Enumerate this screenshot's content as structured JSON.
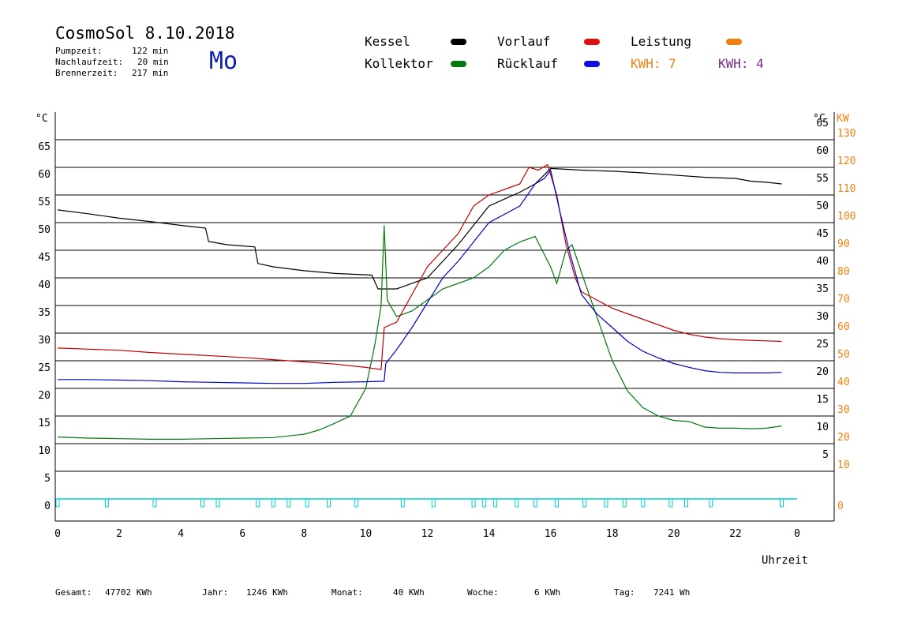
{
  "header": {
    "title": "CosmoSol 8.10.2018",
    "day": "Mo",
    "stats": [
      {
        "label": "Pumpzeit:",
        "value": "122 min"
      },
      {
        "label": "Nachlaufzeit:",
        "value": "20 min"
      },
      {
        "label": "Brennerzeit:",
        "value": "217 min"
      }
    ]
  },
  "legend": {
    "kessel": "Kessel",
    "kollektor": "Kollektor",
    "vorlauf": "Vorlauf",
    "ruecklauf": "Rücklauf",
    "leistung": "Leistung",
    "kwh1": "KWH: 7",
    "kwh2": "KWH: 4"
  },
  "colors": {
    "kessel": "#000000",
    "kollektor": "#007a0e",
    "vorlauf": "#c00000",
    "ruecklauf": "#0000c8",
    "leistung": "#f07a00",
    "kwh2": "#7a2a8a",
    "pump": "#00d0d0"
  },
  "footer": [
    {
      "label": "Gesamt:",
      "value": "47702 KWh"
    },
    {
      "label": "Jahr:",
      "value": "1246 KWh"
    },
    {
      "label": "Monat:",
      "value": "40 KWh"
    },
    {
      "label": "Woche:",
      "value": "6 KWh"
    },
    {
      "label": "Tag:",
      "value": "7241 Wh"
    }
  ],
  "chart_data": {
    "type": "line",
    "xlabel": "Uhrzeit",
    "left_unit": "°C",
    "right_unit_temp": "°C",
    "right_unit_power": "KW",
    "xlim": [
      0,
      24
    ],
    "ylim": [
      0,
      65
    ],
    "x_ticks": [
      "0",
      "2",
      "4",
      "6",
      "8",
      "10",
      "12",
      "14",
      "16",
      "18",
      "20",
      "22",
      "0"
    ],
    "y_ticks": [
      0,
      5,
      10,
      15,
      20,
      25,
      30,
      35,
      40,
      45,
      50,
      55,
      60,
      65
    ],
    "right_temp_ticks": [
      5,
      10,
      15,
      20,
      25,
      30,
      35,
      40,
      45,
      50,
      55,
      60,
      65
    ],
    "right_power_ticks": [
      0,
      10,
      20,
      30,
      40,
      50,
      60,
      70,
      80,
      90,
      100,
      110,
      120,
      130
    ],
    "series": [
      {
        "name": "Kessel",
        "points": [
          [
            0,
            52.3
          ],
          [
            1,
            51.6
          ],
          [
            2,
            50.8
          ],
          [
            3,
            50.2
          ],
          [
            4,
            49.5
          ],
          [
            4.8,
            49.0
          ],
          [
            4.9,
            46.6
          ],
          [
            5.5,
            46.0
          ],
          [
            6.4,
            45.6
          ],
          [
            6.5,
            42.6
          ],
          [
            7,
            42.0
          ],
          [
            8,
            41.3
          ],
          [
            9,
            40.8
          ],
          [
            10.2,
            40.5
          ],
          [
            10.4,
            38.0
          ],
          [
            11,
            38.0
          ],
          [
            12,
            40.0
          ],
          [
            13,
            46.0
          ],
          [
            14,
            53.0
          ],
          [
            15,
            55.5
          ],
          [
            15.5,
            57.0
          ],
          [
            16,
            59.8
          ],
          [
            17,
            59.5
          ],
          [
            18,
            59.3
          ],
          [
            19,
            59.0
          ],
          [
            20,
            58.6
          ],
          [
            21,
            58.2
          ],
          [
            22,
            58.0
          ],
          [
            22.5,
            57.5
          ],
          [
            23,
            57.3
          ],
          [
            23.5,
            57.0
          ]
        ]
      },
      {
        "name": "Kollektor",
        "points": [
          [
            0,
            11.2
          ],
          [
            1,
            11.0
          ],
          [
            2,
            10.9
          ],
          [
            3,
            10.8
          ],
          [
            4,
            10.8
          ],
          [
            5,
            10.9
          ],
          [
            6,
            11.0
          ],
          [
            7,
            11.1
          ],
          [
            8,
            11.7
          ],
          [
            8.5,
            12.5
          ],
          [
            9,
            13.7
          ],
          [
            9.5,
            15.0
          ],
          [
            10,
            20.0
          ],
          [
            10.3,
            28.0
          ],
          [
            10.5,
            35.0
          ],
          [
            10.6,
            49.5
          ],
          [
            10.7,
            36.0
          ],
          [
            11,
            33.0
          ],
          [
            11.5,
            34.0
          ],
          [
            12,
            36.0
          ],
          [
            12.5,
            38.0
          ],
          [
            13,
            39.0
          ],
          [
            13.5,
            40.0
          ],
          [
            14,
            42.0
          ],
          [
            14.5,
            45.0
          ],
          [
            15,
            46.5
          ],
          [
            15.5,
            47.5
          ],
          [
            16,
            42.0
          ],
          [
            16.2,
            39.0
          ],
          [
            16.5,
            45.0
          ],
          [
            16.7,
            46.0
          ],
          [
            17,
            41.0
          ],
          [
            17.5,
            33.0
          ],
          [
            18,
            25.0
          ],
          [
            18.5,
            19.5
          ],
          [
            19,
            16.5
          ],
          [
            19.5,
            15.0
          ],
          [
            20,
            14.2
          ],
          [
            20.5,
            14.0
          ],
          [
            21,
            13.0
          ],
          [
            21.5,
            12.8
          ],
          [
            22,
            12.8
          ],
          [
            22.5,
            12.7
          ],
          [
            23,
            12.8
          ],
          [
            23.5,
            13.2
          ]
        ]
      },
      {
        "name": "Vorlauf",
        "points": [
          [
            0,
            27.3
          ],
          [
            1,
            27.1
          ],
          [
            2,
            26.9
          ],
          [
            3,
            26.5
          ],
          [
            4,
            26.2
          ],
          [
            5,
            25.9
          ],
          [
            6,
            25.6
          ],
          [
            7,
            25.2
          ],
          [
            8,
            24.8
          ],
          [
            9,
            24.4
          ],
          [
            10,
            23.8
          ],
          [
            10.5,
            23.4
          ],
          [
            10.6,
            31.0
          ],
          [
            11,
            32.0
          ],
          [
            11.5,
            37.0
          ],
          [
            12,
            42.0
          ],
          [
            12.5,
            45.0
          ],
          [
            13,
            48.0
          ],
          [
            13.5,
            53.0
          ],
          [
            14,
            55.0
          ],
          [
            14.5,
            56.0
          ],
          [
            15,
            57.0
          ],
          [
            15.3,
            60.0
          ],
          [
            15.6,
            59.5
          ],
          [
            15.9,
            60.5
          ],
          [
            16.2,
            55.0
          ],
          [
            16.5,
            46.0
          ],
          [
            16.8,
            40.0
          ],
          [
            17,
            37.5
          ],
          [
            17.5,
            36.0
          ],
          [
            18,
            34.5
          ],
          [
            18.5,
            33.5
          ],
          [
            19,
            32.5
          ],
          [
            19.5,
            31.5
          ],
          [
            20,
            30.5
          ],
          [
            20.5,
            29.8
          ],
          [
            21,
            29.3
          ],
          [
            21.5,
            29.0
          ],
          [
            22,
            28.8
          ],
          [
            22.5,
            28.7
          ],
          [
            23,
            28.6
          ],
          [
            23.5,
            28.5
          ]
        ]
      },
      {
        "name": "Rücklauf",
        "points": [
          [
            0,
            21.6
          ],
          [
            1,
            21.6
          ],
          [
            2,
            21.5
          ],
          [
            3,
            21.4
          ],
          [
            4,
            21.2
          ],
          [
            5,
            21.1
          ],
          [
            6,
            21.0
          ],
          [
            7,
            20.9
          ],
          [
            8,
            20.9
          ],
          [
            9,
            21.1
          ],
          [
            10,
            21.2
          ],
          [
            10.6,
            21.3
          ],
          [
            10.65,
            24.5
          ],
          [
            11,
            27.0
          ],
          [
            11.5,
            31.0
          ],
          [
            12,
            35.5
          ],
          [
            12.5,
            40.0
          ],
          [
            13,
            43.0
          ],
          [
            13.5,
            46.5
          ],
          [
            14,
            50.0
          ],
          [
            14.5,
            51.5
          ],
          [
            15,
            53.0
          ],
          [
            15.5,
            57.0
          ],
          [
            15.8,
            58.0
          ],
          [
            16,
            59.5
          ],
          [
            16.3,
            52.0
          ],
          [
            16.6,
            45.0
          ],
          [
            17,
            37.0
          ],
          [
            17.5,
            33.5
          ],
          [
            18,
            31.0
          ],
          [
            18.5,
            28.5
          ],
          [
            19,
            26.7
          ],
          [
            19.5,
            25.5
          ],
          [
            20,
            24.5
          ],
          [
            20.5,
            23.8
          ],
          [
            21,
            23.2
          ],
          [
            21.5,
            22.9
          ],
          [
            22,
            22.8
          ],
          [
            22.5,
            22.8
          ],
          [
            23,
            22.8
          ],
          [
            23.5,
            22.9
          ]
        ]
      }
    ],
    "pump_markers_hours": [
      0,
      1.6,
      3.15,
      4.7,
      5.2,
      6.5,
      7,
      7.5,
      8.1,
      8.8,
      9.7,
      11.2,
      12.2,
      13.5,
      13.85,
      14.2,
      14.9,
      15.5,
      16.2,
      17.1,
      17.8,
      18.4,
      19.0,
      19.9,
      20.4,
      21.2,
      23.5
    ]
  }
}
